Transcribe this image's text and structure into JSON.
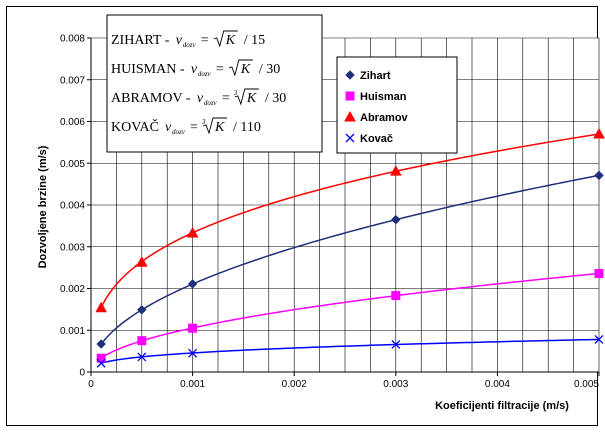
{
  "chart_data": {
    "type": "line",
    "xlabel": "Koeficijenti filtracije (m/s)",
    "ylabel": "Dozvoljene brzine (m/s)",
    "xlim": [
      0,
      0.005
    ],
    "ylim": [
      0,
      0.008
    ],
    "x_ticks": [
      "0",
      "0.001",
      "0.002",
      "0.003",
      "0.004",
      "0.005"
    ],
    "y_ticks": [
      "0",
      "0.001",
      "0.002",
      "0.003",
      "0.004",
      "0.005",
      "0.006",
      "0.007",
      "0.008"
    ],
    "grid": true,
    "legend_position": "right",
    "series": [
      {
        "name": "Zihart",
        "formula_label": "ZIHART -",
        "divisor": 15,
        "root": 2,
        "color": "#1f2f7a",
        "marker": "diamond",
        "x": [
          0.0001,
          0.0005,
          0.001,
          0.003,
          0.005
        ],
        "y": [
          0.00067,
          0.00149,
          0.00211,
          0.00365,
          0.00471
        ]
      },
      {
        "name": "Huisman",
        "formula_label": "HUISMAN -",
        "divisor": 30,
        "root": 2,
        "color": "#ff00ff",
        "marker": "square",
        "x": [
          0.0001,
          0.0005,
          0.001,
          0.003,
          0.005
        ],
        "y": [
          0.00033,
          0.00075,
          0.00105,
          0.00183,
          0.00236
        ]
      },
      {
        "name": "Abramov",
        "formula_label": "ABRAMOV -",
        "divisor": 30,
        "root": 3,
        "color": "#ff0000",
        "marker": "triangle",
        "x": [
          0.0001,
          0.0005,
          0.001,
          0.003,
          0.005
        ],
        "y": [
          0.00154,
          0.00263,
          0.00333,
          0.00481,
          0.0057
        ]
      },
      {
        "name": "Kovač",
        "formula_label": "KOVAČ",
        "divisor": 110,
        "root": 3,
        "color": "#0000ff",
        "marker": "x",
        "x": [
          0.0001,
          0.0005,
          0.001,
          0.003,
          0.005
        ],
        "y": [
          0.00021,
          0.00036,
          0.00045,
          0.00066,
          0.00078
        ]
      }
    ],
    "formula": {
      "v": "v",
      "sub": "dozv",
      "eq": "=",
      "K": "K",
      "slash": "/"
    }
  }
}
